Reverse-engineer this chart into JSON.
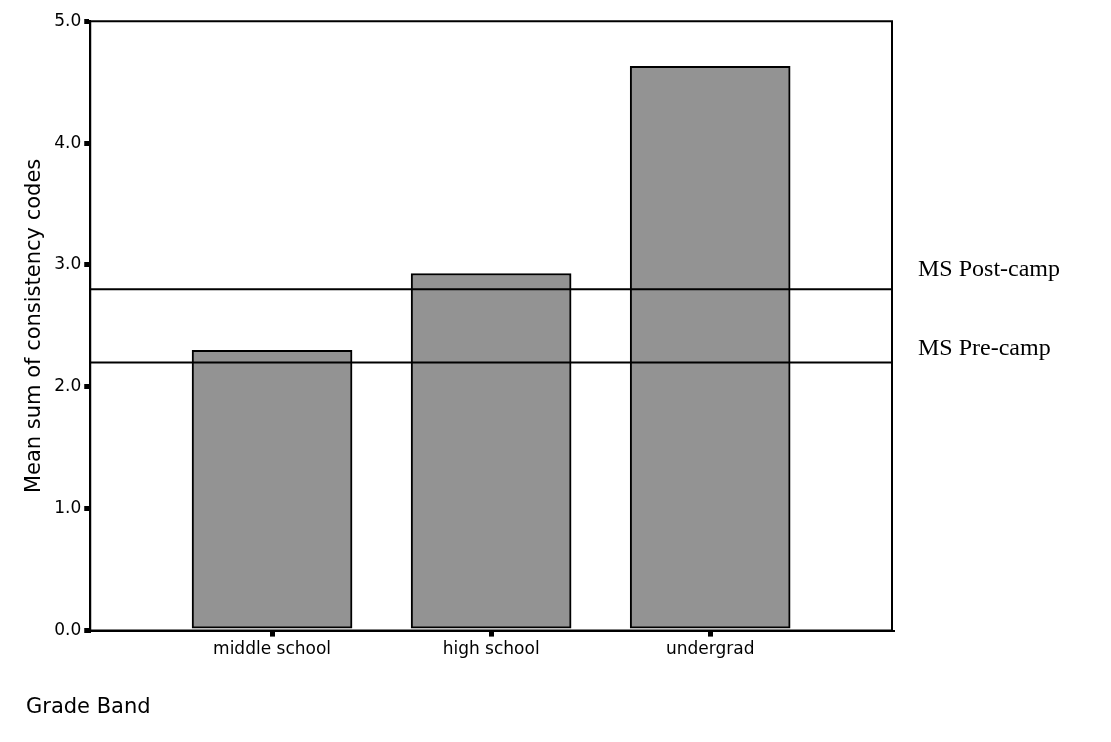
{
  "chart_data": {
    "type": "bar",
    "xlabel": "Grade Band",
    "ylabel": "Mean sum of consistency codes",
    "categories": [
      "middle school",
      "high school",
      "undergrad"
    ],
    "values": [
      2.3,
      2.93,
      4.63
    ],
    "color": "#939393",
    "ylim": [
      0,
      5
    ],
    "yticks": [
      {
        "value": 0,
        "label": "0.0"
      },
      {
        "value": 1,
        "label": "1.0"
      },
      {
        "value": 2,
        "label": "2.0"
      },
      {
        "value": 3,
        "label": "3.0"
      },
      {
        "value": 4,
        "label": "4.0"
      },
      {
        "value": 5,
        "label": "5.0"
      }
    ],
    "ref_lines": [
      {
        "axis": "y",
        "value": 2.8,
        "label": "MS Post-camp",
        "color": "#000000"
      },
      {
        "axis": "y",
        "value": 2.2,
        "label": "MS Pre-camp",
        "color": "#000000"
      }
    ]
  }
}
